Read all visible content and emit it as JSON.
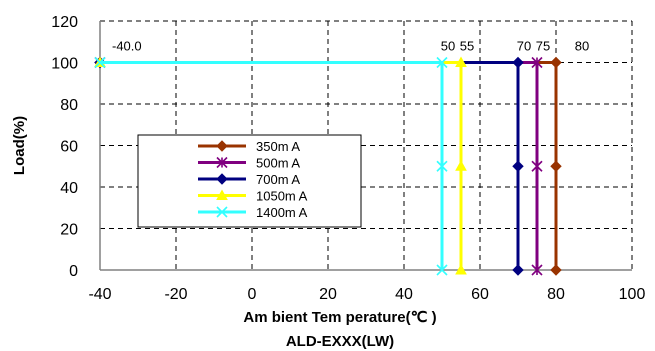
{
  "chart_data": {
    "type": "line",
    "title": "",
    "xlabel": "Am bient Tem perature(℃ )",
    "ylabel": "Load(%)",
    "caption": "ALD-EXXX(LW)",
    "xlim": [
      -40,
      100
    ],
    "ylim": [
      0,
      120
    ],
    "xticks": [
      -40,
      -20,
      0,
      20,
      40,
      60,
      80,
      100
    ],
    "yticks": [
      0,
      20,
      40,
      60,
      80,
      100,
      120
    ],
    "grid": "dashed",
    "legend": "center-left",
    "series": [
      {
        "name": "350m A",
        "color": "#993300",
        "marker": "diamond",
        "points": [
          [
            -40,
            100
          ],
          [
            80,
            100
          ],
          [
            80,
            50
          ],
          [
            80,
            0
          ]
        ]
      },
      {
        "name": "500m A",
        "color": "#800080",
        "marker": "star",
        "points": [
          [
            -40,
            100
          ],
          [
            75,
            100
          ],
          [
            75,
            50
          ],
          [
            75,
            0
          ]
        ]
      },
      {
        "name": "700m A",
        "color": "#000080",
        "marker": "diamond",
        "points": [
          [
            -40,
            100
          ],
          [
            70,
            100
          ],
          [
            70,
            50
          ],
          [
            70,
            0
          ]
        ]
      },
      {
        "name": "1050m A",
        "color": "#ffff00",
        "marker": "triangle",
        "points": [
          [
            -40,
            100
          ],
          [
            55,
            100
          ],
          [
            55,
            50
          ],
          [
            55,
            0
          ]
        ]
      },
      {
        "name": "1400m A",
        "color": "#33ffff",
        "marker": "x",
        "points": [
          [
            -40,
            100
          ],
          [
            50,
            100
          ],
          [
            50,
            50
          ],
          [
            50,
            0
          ]
        ]
      }
    ],
    "annotations": [
      {
        "text": "-40.0",
        "x": -40,
        "y": 100
      },
      {
        "text": "50",
        "x": 50,
        "y": 100
      },
      {
        "text": "55",
        "x": 55,
        "y": 100
      },
      {
        "text": "70",
        "x": 70,
        "y": 100
      },
      {
        "text": "75",
        "x": 75,
        "y": 100
      },
      {
        "text": "80",
        "x": 80,
        "y": 100
      }
    ]
  }
}
